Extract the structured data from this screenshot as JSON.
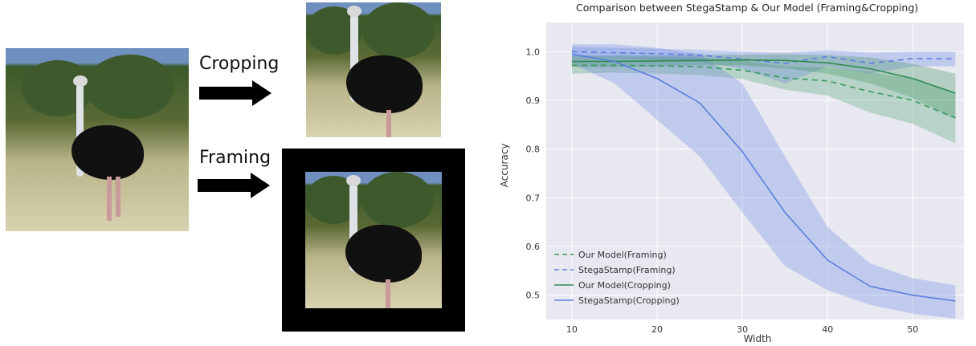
{
  "operations": {
    "cropping": "Cropping",
    "framing": "Framing"
  },
  "chart_data": {
    "type": "line",
    "title": "Comparison between StegaStamp & Our Model (Framing&Cropping)",
    "xlabel": "Width",
    "ylabel": "Accuracy",
    "xlim": [
      7,
      56
    ],
    "ylim": [
      0.45,
      1.06
    ],
    "xticks": [
      10,
      20,
      30,
      40,
      50
    ],
    "yticks": [
      0.5,
      0.6,
      0.7,
      0.8,
      0.9,
      1.0
    ],
    "grid": true,
    "legend_position": "bottom-left",
    "x": [
      10,
      15,
      20,
      25,
      30,
      35,
      40,
      45,
      50,
      55
    ],
    "series": [
      {
        "name": "Our Model(Framing)",
        "style": "dashed",
        "color": "#3a9a5c",
        "values": [
          0.972,
          0.972,
          0.971,
          0.969,
          0.962,
          0.946,
          0.94,
          0.918,
          0.9,
          0.864
        ],
        "band_lower": [
          0.955,
          0.957,
          0.955,
          0.952,
          0.944,
          0.922,
          0.91,
          0.875,
          0.852,
          0.812
        ],
        "band_upper": [
          0.99,
          0.99,
          0.989,
          0.988,
          0.982,
          0.97,
          0.968,
          0.958,
          0.945,
          0.915
        ]
      },
      {
        "name": "StegaStamp(Framing)",
        "style": "dashed",
        "color": "#5b7fe0",
        "values": [
          1.0,
          0.998,
          0.996,
          0.993,
          0.985,
          0.976,
          0.99,
          0.976,
          0.986,
          0.985
        ],
        "band_lower": [
          0.99,
          0.988,
          0.984,
          0.98,
          0.965,
          0.935,
          0.97,
          0.955,
          0.97,
          0.97
        ],
        "band_upper": [
          1.01,
          1.008,
          1.006,
          1.004,
          1.0,
          0.998,
          1.003,
          0.998,
          1.0,
          1.0
        ]
      },
      {
        "name": "Our Model(Cropping)",
        "style": "solid",
        "color": "#2e8b50",
        "values": [
          0.98,
          0.98,
          0.981,
          0.982,
          0.983,
          0.982,
          0.977,
          0.965,
          0.945,
          0.915
        ],
        "band_lower": [
          0.968,
          0.968,
          0.97,
          0.972,
          0.972,
          0.966,
          0.955,
          0.935,
          0.905,
          0.862
        ],
        "band_upper": [
          0.992,
          0.992,
          0.992,
          0.993,
          0.994,
          0.995,
          0.993,
          0.988,
          0.975,
          0.955
        ]
      },
      {
        "name": "StegaStamp(Cropping)",
        "style": "solid",
        "color": "#5b7fe0",
        "values": [
          0.995,
          0.98,
          0.945,
          0.895,
          0.795,
          0.67,
          0.572,
          0.518,
          0.5,
          0.488
        ],
        "band_lower": [
          0.975,
          0.935,
          0.86,
          0.785,
          0.67,
          0.56,
          0.51,
          0.48,
          0.462,
          0.452
        ],
        "band_upper": [
          1.015,
          1.015,
          1.008,
          0.995,
          0.935,
          0.785,
          0.64,
          0.565,
          0.535,
          0.52
        ]
      }
    ]
  }
}
